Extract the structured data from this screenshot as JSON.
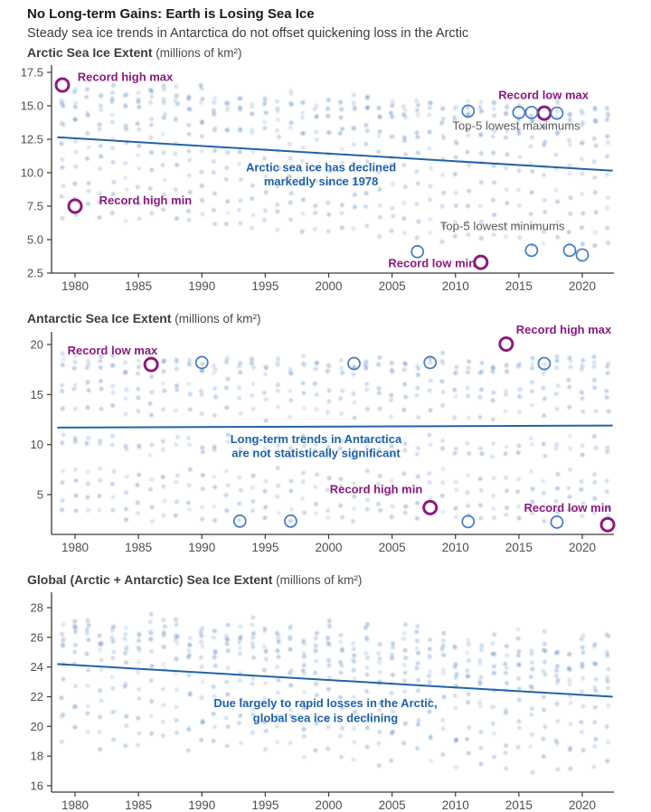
{
  "header": {
    "title": "No Long-term Gains: Earth is Losing Sea Ice",
    "subtitle": "Steady sea ice trends in Antarctica do not offset quickening loss in the Arctic"
  },
  "colors": {
    "purple": "#8c1a7f",
    "blue": "#1f62a8",
    "trend_blue": "#2163a8",
    "circle_blue": "#4a7fc1",
    "dot_blue": "#6e96c3",
    "gray_label": "#5a5a5a",
    "axis": "#3a3a3a",
    "tick_label": "#4f4f4f"
  },
  "chart_data": [
    {
      "type": "scatter",
      "title": "Arctic Sea Ice Extent",
      "unit": " (millions of km²)",
      "x_ticks": [
        1980,
        1985,
        1990,
        1995,
        2000,
        2005,
        2010,
        2015,
        2020
      ],
      "y_ticks": [
        "17.5",
        "15.0",
        "12.5",
        "10.0",
        "7.5",
        "5.0",
        "2.5"
      ],
      "y_tick_values": [
        17.5,
        15.0,
        12.5,
        10.0,
        7.5,
        5.0,
        2.5
      ],
      "ylim": [
        2.5,
        17.5
      ],
      "years": [
        1979,
        2022
      ],
      "monthly_start": [
        15.3,
        16.1,
        16.4,
        15.6,
        14.1,
        12.6,
        10.6,
        8.4,
        7.2,
        9.2,
        11.6,
        13.9
      ],
      "monthly_end": [
        13.8,
        14.5,
        14.6,
        13.9,
        12.5,
        10.9,
        8.3,
        5.8,
        4.6,
        7.0,
        9.9,
        12.3
      ],
      "noise": 0.3,
      "year_anomaly": 0.5,
      "trend": {
        "year_start": 1978.6,
        "value_start": 12.65,
        "year_end": 2022.4,
        "value_end": 10.15
      },
      "highlights": [
        {
          "year": 1979,
          "value": 16.55,
          "style": "record"
        },
        {
          "year": 1980,
          "value": 7.5,
          "style": "record"
        },
        {
          "year": 2017,
          "value": 14.45,
          "style": "record"
        },
        {
          "year": 2012,
          "value": 3.3,
          "style": "record"
        },
        {
          "year": 2011,
          "value": 14.6,
          "style": "top5"
        },
        {
          "year": 2015,
          "value": 14.5,
          "style": "top5"
        },
        {
          "year": 2016,
          "value": 14.5,
          "style": "top5"
        },
        {
          "year": 2018,
          "value": 14.45,
          "style": "top5"
        },
        {
          "year": 2007,
          "value": 4.1,
          "style": "top5"
        },
        {
          "year": 2016,
          "value": 4.2,
          "style": "top5"
        },
        {
          "year": 2019,
          "value": 4.2,
          "style": "top5"
        },
        {
          "year": 2020,
          "value": 3.85,
          "style": "top5"
        }
      ],
      "annotations": [
        {
          "lines": [
            "Record high max"
          ],
          "year": 1980.2,
          "values": [
            16.85
          ],
          "color": "purple",
          "bold": true,
          "anchor": "start"
        },
        {
          "lines": [
            "Record high min"
          ],
          "year": 1981.9,
          "values": [
            7.65
          ],
          "color": "purple",
          "bold": true,
          "anchor": "start"
        },
        {
          "lines": [
            "Record low max"
          ],
          "year": 2020.5,
          "values": [
            15.5
          ],
          "color": "purple",
          "bold": true,
          "anchor": "end"
        },
        {
          "lines": [
            "Top-5 lowest maximums"
          ],
          "year": 2014.8,
          "values": [
            13.2
          ],
          "color": "gray",
          "bold": false,
          "anchor": "middle"
        },
        {
          "lines": [
            "Arctic sea ice has declined",
            "markedly since 1978"
          ],
          "year": 1999.4,
          "values": [
            10.1,
            9.05
          ],
          "color": "blue",
          "bold": true,
          "anchor": "middle"
        },
        {
          "lines": [
            "Top-5 lowest minimums"
          ],
          "year": 2013.7,
          "values": [
            5.7
          ],
          "color": "gray",
          "bold": false,
          "anchor": "middle"
        },
        {
          "lines": [
            "Record low min"
          ],
          "year": 2011.6,
          "values": [
            2.95
          ],
          "color": "purple",
          "bold": true,
          "anchor": "end"
        }
      ]
    },
    {
      "type": "scatter",
      "title": "Antarctic Sea Ice Extent",
      "unit": " (millions of km²)",
      "x_ticks": [
        1980,
        1985,
        1990,
        1995,
        2000,
        2005,
        2010,
        2015,
        2020
      ],
      "y_ticks": [
        "20",
        "15",
        "10",
        "5"
      ],
      "y_tick_values": [
        20,
        15,
        10,
        5
      ],
      "ylim": [
        1,
        21.5
      ],
      "years": [
        1979,
        2022
      ],
      "monthly_start": [
        5.8,
        3.1,
        4.2,
        7.0,
        10.3,
        13.3,
        15.8,
        17.5,
        18.3,
        17.9,
        15.0,
        9.6
      ],
      "monthly_end": [
        5.6,
        3.0,
        4.1,
        6.9,
        10.2,
        13.3,
        15.8,
        17.6,
        18.4,
        18.0,
        15.1,
        9.4
      ],
      "noise": 0.35,
      "year_anomaly": 0.6,
      "trend": {
        "year_start": 1978.6,
        "value_start": 11.7,
        "year_end": 2022.4,
        "value_end": 11.9
      },
      "highlights": [
        {
          "year": 1986,
          "value": 18.0,
          "style": "record"
        },
        {
          "year": 2014,
          "value": 20.05,
          "style": "record"
        },
        {
          "year": 2008,
          "value": 3.7,
          "style": "record"
        },
        {
          "year": 2022,
          "value": 2.0,
          "style": "record"
        },
        {
          "year": 1990,
          "value": 18.2,
          "style": "top5"
        },
        {
          "year": 2002,
          "value": 18.1,
          "style": "top5"
        },
        {
          "year": 2008,
          "value": 18.2,
          "style": "top5"
        },
        {
          "year": 2017,
          "value": 18.1,
          "style": "top5"
        },
        {
          "year": 1993,
          "value": 2.35,
          "style": "top5"
        },
        {
          "year": 1997,
          "value": 2.35,
          "style": "top5"
        },
        {
          "year": 2011,
          "value": 2.3,
          "style": "top5"
        },
        {
          "year": 2018,
          "value": 2.25,
          "style": "top5"
        }
      ],
      "annotations": [
        {
          "lines": [
            "Record low max"
          ],
          "year": 1979.4,
          "values": [
            19.0
          ],
          "color": "purple",
          "bold": true,
          "anchor": "start"
        },
        {
          "lines": [
            "Record high max"
          ],
          "year": 2022.3,
          "values": [
            21.1
          ],
          "color": "purple",
          "bold": true,
          "anchor": "end"
        },
        {
          "lines": [
            "Long-term trends in Antarctica",
            "are not statistically significant"
          ],
          "year": 1999.0,
          "values": [
            10.15,
            8.75
          ],
          "color": "blue",
          "bold": true,
          "anchor": "middle"
        },
        {
          "lines": [
            "Record high min"
          ],
          "year": 2007.4,
          "values": [
            5.15
          ],
          "color": "purple",
          "bold": true,
          "anchor": "end"
        },
        {
          "lines": [
            "Record low min"
          ],
          "year": 2022.3,
          "values": [
            3.3
          ],
          "color": "purple",
          "bold": true,
          "anchor": "end"
        }
      ]
    },
    {
      "type": "scatter",
      "title": "Global (Arctic + Antarctic) Sea Ice Extent",
      "unit": " (millions of km²)",
      "x_ticks": [
        1980,
        1985,
        1990,
        1995,
        2000,
        2005,
        2010,
        2015,
        2020
      ],
      "y_ticks": [
        "28",
        "26",
        "24",
        "22",
        "20",
        "18",
        "16"
      ],
      "y_tick_values": [
        28,
        26,
        24,
        22,
        20,
        18,
        16
      ],
      "ylim": [
        15.6,
        28.7
      ],
      "years": [
        1979,
        2022
      ],
      "monthly_start": [
        21.1,
        19.3,
        20.7,
        22.7,
        24.4,
        25.9,
        26.4,
        25.9,
        25.5,
        27.1,
        26.6,
        23.5
      ],
      "monthly_end": [
        19.4,
        17.5,
        18.8,
        20.9,
        22.8,
        24.3,
        24.2,
        23.5,
        23.0,
        25.5,
        25.4,
        21.8
      ],
      "noise": 0.4,
      "year_anomaly": 0.7,
      "trend": {
        "year_start": 1978.6,
        "value_start": 24.2,
        "year_end": 2022.4,
        "value_end": 22.0
      },
      "highlights": [],
      "annotations": [
        {
          "lines": [
            "Due largely to rapid losses in the Arctic,",
            "global sea ice is declining"
          ],
          "year": 1999.75,
          "values": [
            21.3,
            20.3
          ],
          "color": "blue",
          "bold": true,
          "anchor": "middle"
        }
      ]
    }
  ]
}
